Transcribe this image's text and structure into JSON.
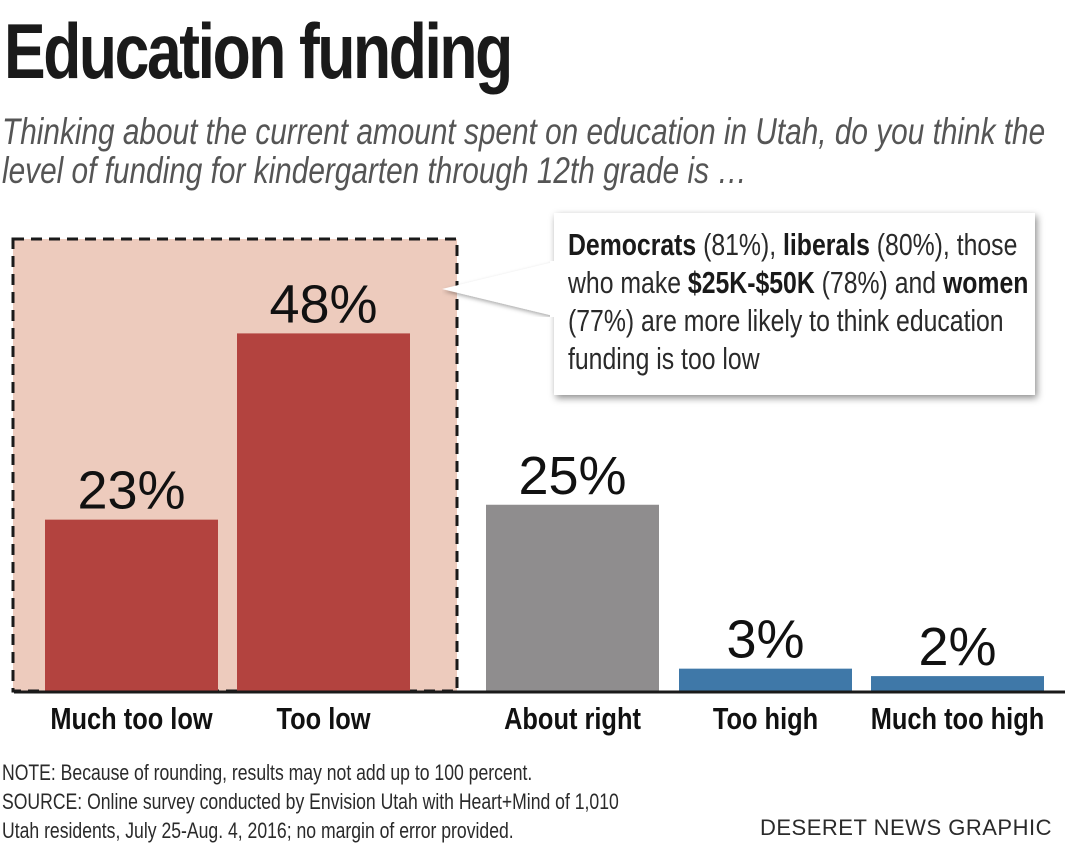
{
  "title": "Education funding",
  "subtitle": "Thinking about the current amount spent on education in Utah, do you think the level of funding for kindergarten through 12th grade is …",
  "chart_data": {
    "type": "bar",
    "categories": [
      "Much too low",
      "Too low",
      "About right",
      "Too high",
      "Much too high"
    ],
    "values": [
      23,
      48,
      25,
      3,
      2
    ],
    "value_labels": [
      "23%",
      "48%",
      "25%",
      "3%",
      "2%"
    ],
    "unit": "%",
    "colors": [
      "#b3433f",
      "#b3433f",
      "#8f8d8e",
      "#3f78a8",
      "#3f78a8"
    ],
    "highlight_color": "#edcbbd",
    "highlight_group": [
      "Much too low",
      "Too low"
    ],
    "title": "Education funding",
    "xlabel": "",
    "ylabel": "",
    "ylim": [
      0,
      50
    ],
    "grid": false,
    "legend": "none"
  },
  "callout": {
    "parts": [
      {
        "text": "Democrats",
        "bold": true
      },
      {
        "text": " (81%), ",
        "bold": false
      },
      {
        "text": "liberals",
        "bold": true
      },
      {
        "text": " (80%), those who make ",
        "bold": false
      },
      {
        "text": "$25K-$50K",
        "bold": true
      },
      {
        "text": " (78%) and ",
        "bold": false
      },
      {
        "text": "women",
        "bold": true
      },
      {
        "text": " (77%) are more likely to think education funding is too low",
        "bold": false
      }
    ]
  },
  "note": "NOTE: Because of rounding, results may not add up to 100 percent.",
  "source": "SOURCE: Online survey conducted by Envision Utah with Heart+Mind of 1,010 Utah residents, July 25-Aug. 4, 2016; no margin of error provided.",
  "credit": "DESERET NEWS GRAPHIC"
}
